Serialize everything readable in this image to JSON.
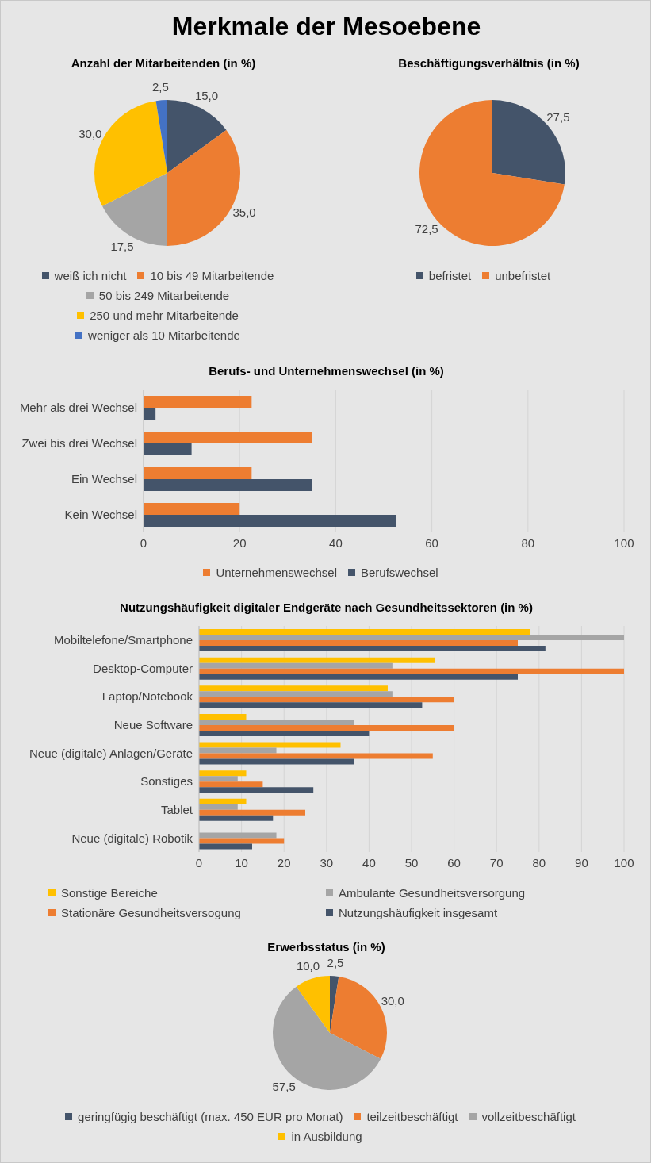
{
  "chart_data": [
    {
      "type": "pie",
      "title": "Anzahl der Mitarbeitenden (in %)",
      "annotations": [
        "Merkmale der Mesoebene"
      ],
      "categories": [
        "weiß ich nicht",
        "10 bis 49 Mitarbeitende",
        "50 bis 249 Mitarbeitende",
        "250 und mehr Mitarbeitende",
        "weniger als 10 Mitarbeitende"
      ],
      "values": [
        15,
        35,
        17.5,
        30,
        2.5
      ],
      "value_labels": [
        "15,0",
        "35,0",
        "17,5",
        "30,0",
        "2,5"
      ],
      "colors": [
        "#44546a",
        "#ed7d31",
        "#a5a5a5",
        "#ffc000",
        "#4472c4"
      ],
      "legend": "bottom"
    },
    {
      "type": "pie",
      "title": "Beschäftigungsverhältnis (in %)",
      "categories": [
        "befristet",
        "unbefristet"
      ],
      "values": [
        27.5,
        72.5
      ],
      "value_labels": [
        "27,5",
        "72,5"
      ],
      "colors": [
        "#44546a",
        "#ed7d31"
      ],
      "legend": "bottom"
    },
    {
      "type": "bar",
      "title": "Berufs- und Unternehmenswechsel (in %)",
      "orientation": "horizontal",
      "categories": [
        "Mehr als drei Wechsel",
        "Zwei bis drei Wechsel",
        "Ein Wechsel",
        "Kein Wechsel"
      ],
      "series": [
        {
          "name": "Unternehmenswechsel",
          "color": "#ed7d31",
          "values": [
            22.5,
            35,
            22.5,
            20
          ]
        },
        {
          "name": "Berufswechsel",
          "color": "#44546a",
          "values": [
            2.5,
            10,
            35,
            52.5
          ]
        }
      ],
      "xlim": [
        0,
        100
      ],
      "xticks": [
        0,
        20,
        40,
        60,
        80,
        100
      ],
      "grid": "x",
      "legend": "bottom"
    },
    {
      "type": "bar",
      "title": "Nutzungshäufigkeit digitaler Endgeräte nach Gesundheitssektoren (in %)",
      "orientation": "horizontal",
      "categories": [
        "Mobiltelefone/Smartphone",
        "Desktop-Computer",
        "Laptop/Notebook",
        "Neue Software",
        "Neue (digitale) Anlagen/Geräte",
        "Sonstiges",
        "Tablet",
        "Neue (digitale) Robotik"
      ],
      "series": [
        {
          "name": "Sonstige Bereiche",
          "color": "#ffc000",
          "values": [
            77.8,
            55.6,
            44.4,
            11.1,
            33.3,
            11.1,
            11.1,
            0
          ]
        },
        {
          "name": "Ambulante Gesundheitsversorgung",
          "color": "#a5a5a5",
          "values": [
            100,
            45.5,
            45.5,
            36.4,
            18.2,
            9.1,
            9.1,
            18.2
          ]
        },
        {
          "name": "Stationäre Gesundheitsversogung",
          "color": "#ed7d31",
          "values": [
            75,
            100,
            60,
            60,
            55,
            15,
            25,
            20
          ]
        },
        {
          "name": "Nutzungshäufigkeit insgesamt",
          "color": "#44546a",
          "values": [
            81.5,
            75,
            52.5,
            40,
            36.4,
            26.9,
            17.4,
            12.5
          ]
        }
      ],
      "xlim": [
        0,
        100
      ],
      "xticks": [
        0,
        10,
        20,
        30,
        40,
        50,
        60,
        70,
        80,
        90,
        100
      ],
      "grid": "x",
      "legend": "bottom"
    },
    {
      "type": "pie",
      "title": "Erwerbsstatus (in %)",
      "categories": [
        "geringfügig beschäftigt (max. 450 EUR pro Monat)",
        "teilzeitbeschäftigt",
        "vollzeitbeschäftigt",
        "in Ausbildung"
      ],
      "values": [
        2.5,
        30,
        57.5,
        10
      ],
      "value_labels": [
        "2,5",
        "30,0",
        "57,5",
        "10,0"
      ],
      "colors": [
        "#44546a",
        "#ed7d31",
        "#a5a5a5",
        "#ffc000"
      ],
      "legend": "bottom"
    }
  ]
}
